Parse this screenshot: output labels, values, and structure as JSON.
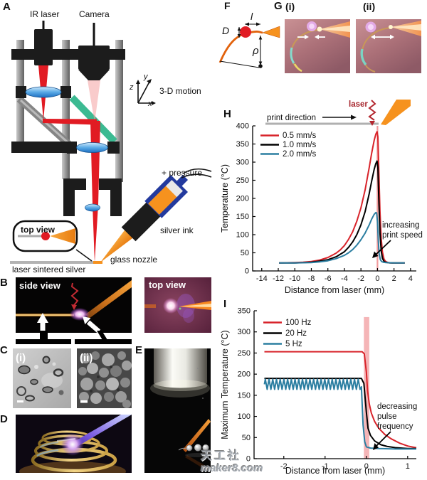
{
  "panels": {
    "a": {
      "label": "A",
      "ir_laser": "IR laser",
      "camera": "Camera",
      "motion_label": "3-D motion",
      "axis_z": "z",
      "axis_y": "y",
      "axis_x": "x",
      "pressure_label": "+ pressure",
      "silver_ink_label": "silver ink",
      "glass_nozzle_label": "glass nozzle",
      "top_view_label": "top view",
      "substrate_label": "laser sintered silver"
    },
    "b": {
      "label": "B",
      "side_view_label": "side view",
      "top_view_label": "top view"
    },
    "c": {
      "label": "C",
      "sub_i": "(i)",
      "sub_ii": "(ii)"
    },
    "d": {
      "label": "D"
    },
    "e": {
      "label": "E"
    },
    "f": {
      "label": "F",
      "dim_length": "l",
      "dim_diameter": "D",
      "dim_radius": "ρ"
    },
    "g": {
      "label": "G",
      "sub_i": "(i)",
      "sub_ii": "(ii)"
    }
  },
  "watermark": {
    "line1": "天工社",
    "line2": "maker8.com"
  },
  "chart_data": [
    {
      "id": "H",
      "type": "line",
      "panel_label": "H",
      "xlabel": "Distance from laser (mm)",
      "ylabel": "Temperature (°C)",
      "xlim": [
        -15.1,
        4.7
      ],
      "ylim": [
        0,
        400
      ],
      "xticks": [
        -14,
        -12,
        -10,
        -8,
        -6,
        -4,
        -2,
        0,
        2,
        4
      ],
      "yticks": [
        0,
        50,
        100,
        150,
        200,
        250,
        300,
        350,
        400
      ],
      "grid": false,
      "legend_position": "top-left",
      "laser_line_x": 0,
      "laser_line_color": "#f29a9c",
      "header": {
        "print_direction_label": "print direction",
        "laser_label": "laser"
      },
      "annotation_lines": [
        "increasing",
        "print speed"
      ],
      "series": [
        {
          "name": "0.5 mm/s",
          "color": "#d8232a",
          "points": [
            [
              -11.9,
              22
            ],
            [
              -10,
              23
            ],
            [
              -9,
              24
            ],
            [
              -8,
              26
            ],
            [
              -7,
              30
            ],
            [
              -6,
              37
            ],
            [
              -5,
              49
            ],
            [
              -4.5,
              58
            ],
            [
              -4,
              70
            ],
            [
              -3.5,
              87
            ],
            [
              -3,
              108
            ],
            [
              -2.5,
              137
            ],
            [
              -2,
              174
            ],
            [
              -1.5,
              223
            ],
            [
              -1,
              285
            ],
            [
              -0.7,
              325
            ],
            [
              -0.4,
              360
            ],
            [
              -0.2,
              377
            ],
            [
              -0.05,
              384
            ],
            [
              0.05,
              370
            ],
            [
              0.15,
              290
            ],
            [
              0.3,
              165
            ],
            [
              0.45,
              90
            ],
            [
              0.6,
              52
            ],
            [
              0.8,
              32
            ],
            [
              1,
              26
            ],
            [
              1.3,
              23
            ],
            [
              1.8,
              22
            ],
            [
              2.5,
              22
            ],
            [
              3.3,
              22
            ]
          ]
        },
        {
          "name": "1.0 mm/s",
          "color": "#000000",
          "points": [
            [
              -11.9,
              22
            ],
            [
              -10,
              22
            ],
            [
              -8,
              24
            ],
            [
              -7,
              27
            ],
            [
              -6,
              31
            ],
            [
              -5,
              39
            ],
            [
              -4,
              53
            ],
            [
              -3.5,
              65
            ],
            [
              -3,
              80
            ],
            [
              -2.5,
              100
            ],
            [
              -2,
              127
            ],
            [
              -1.5,
              163
            ],
            [
              -1,
              213
            ],
            [
              -0.7,
              248
            ],
            [
              -0.4,
              280
            ],
            [
              -0.2,
              296
            ],
            [
              -0.05,
              303
            ],
            [
              0.05,
              285
            ],
            [
              0.15,
              205
            ],
            [
              0.3,
              105
            ],
            [
              0.45,
              55
            ],
            [
              0.6,
              35
            ],
            [
              0.8,
              26
            ],
            [
              1,
              24
            ],
            [
              1.5,
              22
            ],
            [
              2.5,
              22
            ],
            [
              3.3,
              22
            ]
          ]
        },
        {
          "name": "2.0 mm/s",
          "color": "#2b7ea1",
          "points": [
            [
              -11.9,
              22
            ],
            [
              -10,
              22
            ],
            [
              -8,
              23
            ],
            [
              -7,
              25
            ],
            [
              -6,
              28
            ],
            [
              -5,
              34
            ],
            [
              -4,
              43
            ],
            [
              -3.5,
              50
            ],
            [
              -3,
              59
            ],
            [
              -2.5,
              71
            ],
            [
              -2,
              86
            ],
            [
              -1.5,
              104
            ],
            [
              -1,
              127
            ],
            [
              -0.7,
              143
            ],
            [
              -0.4,
              156
            ],
            [
              -0.2,
              161
            ],
            [
              -0.1,
              160
            ],
            [
              0,
              135
            ],
            [
              0.1,
              85
            ],
            [
              0.2,
              48
            ],
            [
              0.35,
              31
            ],
            [
              0.5,
              26
            ],
            [
              0.7,
              24
            ],
            [
              1,
              23
            ],
            [
              2,
              22
            ],
            [
              3.3,
              22
            ]
          ]
        }
      ]
    },
    {
      "id": "I",
      "type": "line",
      "panel_label": "I",
      "xlabel": "Distance from laser (mm)",
      "ylabel": "Maximum Temperature (°C)",
      "xlim": [
        -2.72,
        1.21
      ],
      "ylim": [
        0,
        350
      ],
      "xticks": [
        -2,
        -1,
        0,
        1
      ],
      "yticks": [
        0,
        50,
        100,
        150,
        200,
        250,
        300,
        350
      ],
      "grid": false,
      "legend_position": "top-left",
      "laser_band": {
        "x0": -0.06,
        "x1": 0.07,
        "y_top": 335,
        "color": "#e85a5f"
      },
      "annotation_lines": [
        "decreasing",
        "pulse",
        "frequency"
      ],
      "series": [
        {
          "name": "100 Hz",
          "color": "#d8232a",
          "points": [
            [
              -2.47,
              253
            ],
            [
              -0.1,
              253
            ],
            [
              -0.05,
              248
            ],
            [
              0,
              205
            ],
            [
              0.03,
              160
            ],
            [
              0.07,
              130
            ],
            [
              0.12,
              108
            ],
            [
              0.2,
              88
            ],
            [
              0.3,
              72
            ],
            [
              0.45,
              57
            ],
            [
              0.6,
              47
            ],
            [
              0.8,
              37
            ],
            [
              1,
              30
            ],
            [
              1.15,
              27
            ],
            [
              1.21,
              26
            ]
          ]
        },
        {
          "name": "20 Hz",
          "color": "#000000",
          "points": [
            [
              -2.47,
              190
            ],
            [
              -0.12,
              190
            ],
            [
              -0.06,
              178
            ],
            [
              0,
              110
            ],
            [
              0.04,
              72
            ],
            [
              0.1,
              55
            ],
            [
              0.2,
              42
            ],
            [
              0.35,
              33
            ],
            [
              0.5,
              29
            ],
            [
              0.7,
              26
            ],
            [
              1,
              24
            ],
            [
              1.21,
              24
            ]
          ]
        },
        {
          "name": "5 Hz",
          "color": "#2b7ea1",
          "oscillation": {
            "x_start": -2.47,
            "x_end": -0.13,
            "min": 164,
            "max": 188,
            "period": 0.09
          },
          "points": [
            [
              -0.12,
              170
            ],
            [
              -0.08,
              80
            ],
            [
              -0.04,
              40
            ],
            [
              0,
              28
            ],
            [
              0.1,
              25
            ],
            [
              0.3,
              24
            ],
            [
              0.7,
              23
            ],
            [
              1.21,
              23
            ]
          ]
        }
      ]
    }
  ]
}
